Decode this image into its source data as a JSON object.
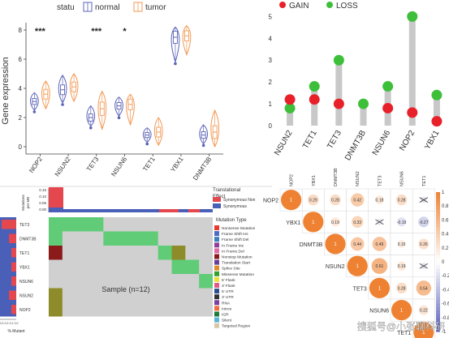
{
  "watermark": "搜狐号@小张聊科研",
  "chart_data": [
    {
      "type": "violin",
      "legend_title": "statu",
      "legend": [
        {
          "name": "normal",
          "color": "#5b63b7"
        },
        {
          "name": "tumor",
          "color": "#f29a55"
        }
      ],
      "ylabel": "Gene expression",
      "ylim": [
        -0.5,
        8.5
      ],
      "yticks": [
        0,
        2,
        4,
        6,
        8
      ],
      "categories": [
        "NOP2",
        "NSUN2",
        "TET3",
        "NSUN6",
        "TET1",
        "YBX1",
        "DNMT3B"
      ],
      "significance": [
        "***",
        "",
        "***",
        "*",
        "",
        "",
        ""
      ],
      "normal_median": [
        3.1,
        3.9,
        2.0,
        2.8,
        0.8,
        7.5,
        0.8
      ],
      "tumor_median": [
        3.6,
        4.1,
        2.6,
        2.9,
        1.0,
        7.6,
        1.0
      ],
      "normal_range": [
        [
          2.5,
          3.7
        ],
        [
          3.0,
          4.9
        ],
        [
          1.4,
          2.8
        ],
        [
          2.1,
          3.4
        ],
        [
          0.3,
          1.3
        ],
        [
          5.8,
          8.2
        ],
        [
          0.2,
          1.5
        ]
      ],
      "tumor_range": [
        [
          2.6,
          4.5
        ],
        [
          3.1,
          5.0
        ],
        [
          1.2,
          3.8
        ],
        [
          1.5,
          3.6
        ],
        [
          0.1,
          2.0
        ],
        [
          6.3,
          8.3
        ],
        [
          0.0,
          2.5
        ]
      ]
    },
    {
      "type": "lollipop",
      "legend": [
        {
          "name": "GAIN",
          "color": "#e8202a"
        },
        {
          "name": "LOSS",
          "color": "#3dbf3a"
        }
      ],
      "categories": [
        "NSUN2",
        "TET1",
        "TET3",
        "DNMT3B",
        "NSUN6",
        "NOP2",
        "YBX1"
      ],
      "gain": [
        1.2,
        1.2,
        1.0,
        null,
        0.8,
        0.6,
        0.2
      ],
      "loss": [
        0.8,
        1.8,
        3.0,
        1.0,
        1.8,
        5.0,
        1.4
      ],
      "ylim": [
        0,
        5.2
      ],
      "yticks": [
        0,
        1,
        2,
        3,
        4,
        5
      ]
    },
    {
      "type": "oncoplot",
      "tmb_axis_label": "Mutations\nper MB",
      "tmb_ticks": [
        "0.15",
        "0.10",
        "0.05",
        "0.00"
      ],
      "translational_title": "Translational\nEffect",
      "translational_legend": [
        {
          "name": "Synonymous Non",
          "color": "#e5474f"
        },
        {
          "name": "Synonymous",
          "color": "#4a5fb8"
        }
      ],
      "genes": [
        "TET3",
        "DNMT3B",
        "TET1",
        "YBX1",
        "NSUN6",
        "NSUN2",
        "NOP2"
      ],
      "side_ticks": [
        "0.3",
        "0.2",
        "0.1",
        "0.0"
      ],
      "side_axis_label": "% Mutant",
      "sample_label": "Sample (n=12)",
      "mutation_type_title": "Mutation Type",
      "mutation_types": [
        {
          "name": "Nonsense Mutation",
          "color": "#e8392c"
        },
        {
          "name": "Frame Shift Ins",
          "color": "#4a6cc2"
        },
        {
          "name": "Frame Shift Del",
          "color": "#3b7fb8"
        },
        {
          "name": "In Frame Ins",
          "color": "#8f3e9a"
        },
        {
          "name": "In Frame Del",
          "color": "#e06aa5"
        },
        {
          "name": "Nonstop Mutation",
          "color": "#8b1a1a"
        },
        {
          "name": "Translation Start",
          "color": "#6a3d9a"
        },
        {
          "name": "Splice Site",
          "color": "#e38b2b"
        },
        {
          "name": "Missense Mutation",
          "color": "#33a02c"
        },
        {
          "name": "5' Flank",
          "color": "#f0df3a"
        },
        {
          "name": "3' Flank",
          "color": "#e05a8a"
        },
        {
          "name": "5' UTR",
          "color": "#2c4e8a"
        },
        {
          "name": "3' UTR",
          "color": "#333333"
        },
        {
          "name": "RNA",
          "color": "#7b3fa0"
        },
        {
          "name": "Intron",
          "color": "#f26d3d"
        },
        {
          "name": "IGR",
          "color": "#1f7a3a"
        },
        {
          "name": "Silent",
          "color": "#5ab4d6"
        },
        {
          "name": "Targeted Region",
          "color": "#d8c7a6"
        }
      ]
    },
    {
      "type": "heatmap",
      "genes": [
        "NOP2",
        "YBX1",
        "DNMT3B",
        "NSUN2",
        "TET3",
        "NSUN6",
        "TET1"
      ],
      "values": [
        [
          1,
          0.29,
          0.28,
          0.42,
          0.18,
          0.28,
          null
        ],
        [
          null,
          1,
          0.19,
          0.33,
          null,
          -0.19,
          -0.27
        ],
        [
          null,
          null,
          1,
          0.44,
          0.49,
          0.15,
          0.26
        ],
        [
          null,
          null,
          null,
          1,
          0.61,
          0.19,
          null
        ],
        [
          null,
          null,
          null,
          null,
          1,
          0.28,
          0.54
        ],
        [
          null,
          null,
          null,
          null,
          null,
          1,
          0.22
        ],
        [
          null,
          null,
          null,
          null,
          null,
          null,
          1
        ]
      ],
      "colorbar_ticks": [
        "1",
        "0.8",
        "0.6",
        "0.4",
        "0.2",
        "0",
        "-0.2",
        "-0.4",
        "-0.6",
        "-0.8",
        "-1"
      ]
    }
  ]
}
